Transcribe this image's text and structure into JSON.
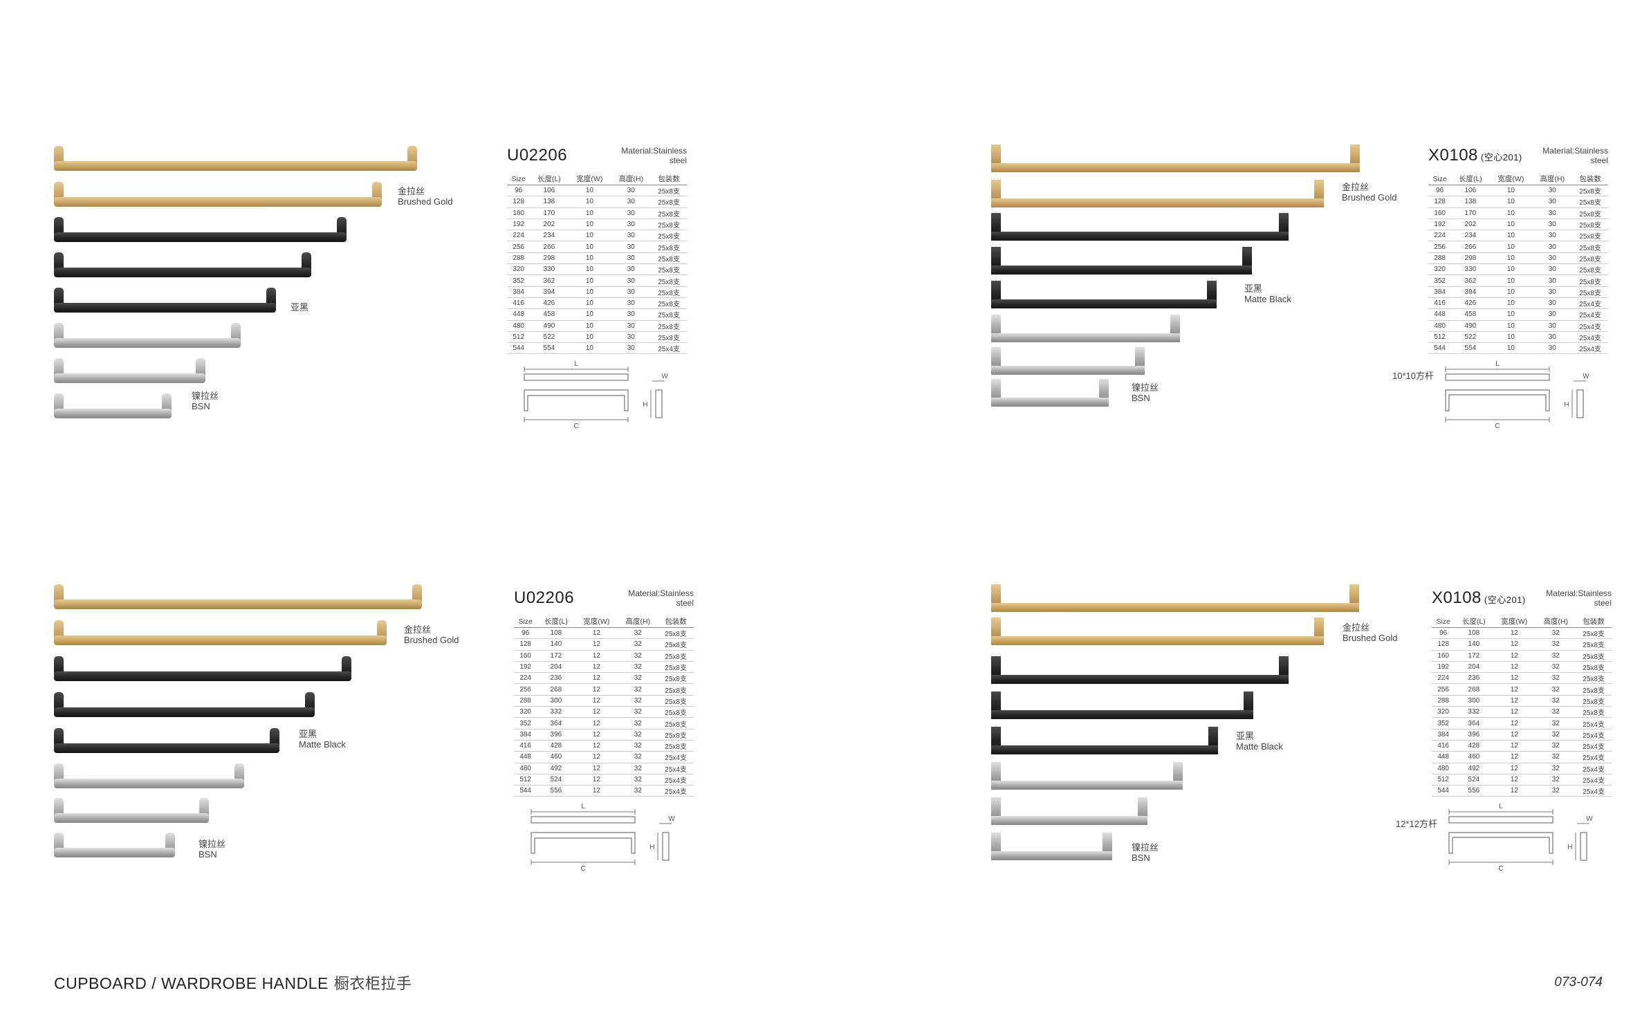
{
  "panels": [
    {
      "model": "U02206",
      "model_note": "",
      "material_line1": "Material:Stainless",
      "material_line2": "steel",
      "rod_note": "",
      "finishes": {
        "gold_cn": "金拉丝",
        "gold_en": "Brushed Gold",
        "black_cn": "亚黑",
        "black_en": "",
        "bsn_cn": "镍拉丝",
        "bsn_en": "BSN"
      },
      "headers": [
        "Size",
        "长度(L)",
        "宽度(W)",
        "高度(H)",
        "包装数"
      ],
      "rows": [
        [
          "96",
          "106",
          "10",
          "30",
          "25x8支"
        ],
        [
          "128",
          "138",
          "10",
          "30",
          "25x8支"
        ],
        [
          "160",
          "170",
          "10",
          "30",
          "25x8支"
        ],
        [
          "192",
          "202",
          "10",
          "30",
          "25x8支"
        ],
        [
          "224",
          "234",
          "10",
          "30",
          "25x8支"
        ],
        [
          "256",
          "266",
          "10",
          "30",
          "25x8支"
        ],
        [
          "288",
          "298",
          "10",
          "30",
          "25x8支"
        ],
        [
          "320",
          "330",
          "10",
          "30",
          "25x8支"
        ],
        [
          "352",
          "362",
          "10",
          "30",
          "25x8支"
        ],
        [
          "384",
          "394",
          "10",
          "30",
          "25x8支"
        ],
        [
          "416",
          "426",
          "10",
          "30",
          "25x8支"
        ],
        [
          "448",
          "458",
          "10",
          "30",
          "25x8支"
        ],
        [
          "480",
          "490",
          "10",
          "30",
          "25x8支"
        ],
        [
          "512",
          "522",
          "10",
          "30",
          "25x8支"
        ],
        [
          "544",
          "554",
          "10",
          "30",
          "25x4支"
        ]
      ]
    },
    {
      "model": "X0108",
      "model_note": "(空心201)",
      "material_line1": "Material:Stainless",
      "material_line2": "steel",
      "rod_note": "10*10方杆",
      "finishes": {
        "gold_cn": "金拉丝",
        "gold_en": "Brushed Gold",
        "black_cn": "亚黑",
        "black_en": "Matte Black",
        "bsn_cn": "镍拉丝",
        "bsn_en": "BSN"
      },
      "headers": [
        "Size",
        "长度(L)",
        "宽度(W)",
        "高度(H)",
        "包装数"
      ],
      "rows": [
        [
          "96",
          "106",
          "10",
          "30",
          "25x8支"
        ],
        [
          "128",
          "138",
          "10",
          "30",
          "25x8支"
        ],
        [
          "160",
          "170",
          "10",
          "30",
          "25x8支"
        ],
        [
          "192",
          "202",
          "10",
          "30",
          "25x8支"
        ],
        [
          "224",
          "234",
          "10",
          "30",
          "25x8支"
        ],
        [
          "256",
          "266",
          "10",
          "30",
          "25x8支"
        ],
        [
          "288",
          "298",
          "10",
          "30",
          "25x8支"
        ],
        [
          "320",
          "330",
          "10",
          "30",
          "25x8支"
        ],
        [
          "352",
          "362",
          "10",
          "30",
          "25x8支"
        ],
        [
          "384",
          "394",
          "10",
          "30",
          "25x8支"
        ],
        [
          "416",
          "426",
          "10",
          "30",
          "25x4支"
        ],
        [
          "448",
          "458",
          "10",
          "30",
          "25x4支"
        ],
        [
          "480",
          "490",
          "10",
          "30",
          "25x4支"
        ],
        [
          "512",
          "522",
          "10",
          "30",
          "25x4支"
        ],
        [
          "544",
          "554",
          "10",
          "30",
          "25x4支"
        ]
      ]
    },
    {
      "model": "U02206",
      "model_note": "",
      "material_line1": "Material:Stainless",
      "material_line2": "steel",
      "rod_note": "",
      "finishes": {
        "gold_cn": "金拉丝",
        "gold_en": "Brushed Gold",
        "black_cn": "亚黑",
        "black_en": "Matte Black",
        "bsn_cn": "镍拉丝",
        "bsn_en": "BSN"
      },
      "headers": [
        "Size",
        "长度(L)",
        "宽度(W)",
        "高度(H)",
        "包装数"
      ],
      "rows": [
        [
          "96",
          "108",
          "12",
          "32",
          "25x8支"
        ],
        [
          "128",
          "140",
          "12",
          "32",
          "25x8支"
        ],
        [
          "160",
          "172",
          "12",
          "32",
          "25x8支"
        ],
        [
          "192",
          "204",
          "12",
          "32",
          "25x8支"
        ],
        [
          "224",
          "236",
          "12",
          "32",
          "25x8支"
        ],
        [
          "256",
          "268",
          "12",
          "32",
          "25x8支"
        ],
        [
          "288",
          "300",
          "12",
          "32",
          "25x8支"
        ],
        [
          "320",
          "332",
          "12",
          "32",
          "25x8支"
        ],
        [
          "352",
          "364",
          "12",
          "32",
          "25x8支"
        ],
        [
          "384",
          "396",
          "12",
          "32",
          "25x8支"
        ],
        [
          "416",
          "428",
          "12",
          "32",
          "25x8支"
        ],
        [
          "448",
          "460",
          "12",
          "32",
          "25x4支"
        ],
        [
          "480",
          "492",
          "12",
          "32",
          "25x4支"
        ],
        [
          "512",
          "524",
          "12",
          "32",
          "25x4支"
        ],
        [
          "544",
          "556",
          "12",
          "32",
          "25x4支"
        ]
      ]
    },
    {
      "model": "X0108",
      "model_note": "(空心201)",
      "material_line1": "Material:Stainless",
      "material_line2": "steel",
      "rod_note": "12*12方杆",
      "finishes": {
        "gold_cn": "金拉丝",
        "gold_en": "Brushed Gold",
        "black_cn": "亚黑",
        "black_en": "Matte Black",
        "bsn_cn": "镍拉丝",
        "bsn_en": "BSN"
      },
      "headers": [
        "Size",
        "长度(L)",
        "宽度(W)",
        "高度(H)",
        "包装数"
      ],
      "rows": [
        [
          "96",
          "108",
          "12",
          "32",
          "25x8支"
        ],
        [
          "128",
          "140",
          "12",
          "32",
          "25x8支"
        ],
        [
          "160",
          "172",
          "12",
          "32",
          "25x8支"
        ],
        [
          "192",
          "204",
          "12",
          "32",
          "25x8支"
        ],
        [
          "224",
          "236",
          "12",
          "32",
          "25x8支"
        ],
        [
          "256",
          "268",
          "12",
          "32",
          "25x8支"
        ],
        [
          "288",
          "300",
          "12",
          "32",
          "25x8支"
        ],
        [
          "320",
          "332",
          "12",
          "32",
          "25x8支"
        ],
        [
          "352",
          "364",
          "12",
          "32",
          "25x4支"
        ],
        [
          "384",
          "396",
          "12",
          "32",
          "25x4支"
        ],
        [
          "416",
          "428",
          "12",
          "32",
          "25x4支"
        ],
        [
          "448",
          "460",
          "12",
          "32",
          "25x4支"
        ],
        [
          "480",
          "492",
          "12",
          "32",
          "25x4支"
        ],
        [
          "512",
          "524",
          "12",
          "32",
          "25x4支"
        ],
        [
          "544",
          "556",
          "12",
          "32",
          "25x4支"
        ]
      ]
    }
  ],
  "diagram_labels": {
    "length": "L",
    "center": "C",
    "width": "W",
    "height": "H"
  },
  "footer": {
    "title_en": "CUPBOARD / WARDROBE HANDLE",
    "title_cn": "橱衣柜拉手",
    "page_range": "073-074"
  },
  "colors": {
    "gold": "#c9a465",
    "black": "#262626",
    "nickel": "#a9a9a9"
  }
}
